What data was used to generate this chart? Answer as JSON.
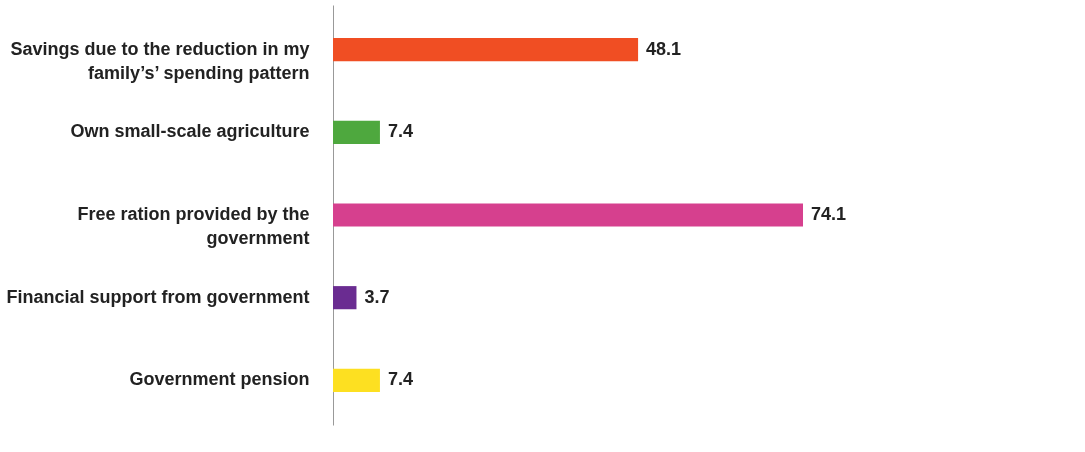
{
  "chart_data": {
    "type": "bar",
    "orientation": "horizontal",
    "categories": [
      "Savings due to the reduction in my family’s’ spending pattern",
      "Own small-scale agriculture",
      "Free ration provided by the government",
      "Financial support from government",
      "Government pension"
    ],
    "values": [
      48.1,
      7.4,
      74.1,
      3.7,
      7.4
    ],
    "colors": [
      "#f04e23",
      "#4ea83e",
      "#d6408e",
      "#6a2c91",
      "#fde021"
    ],
    "tick_labels": "y",
    "data_labels": true
  }
}
